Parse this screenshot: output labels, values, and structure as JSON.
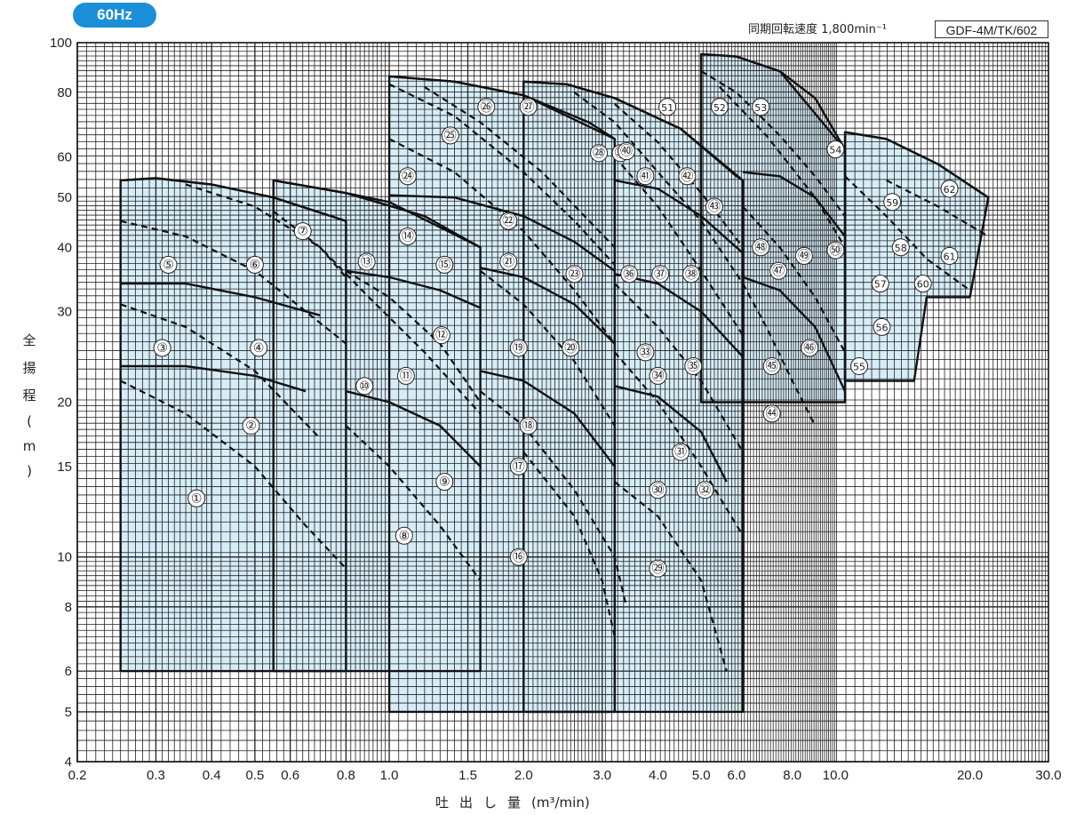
{
  "badge": "60Hz",
  "speed_label": "同期回転速度 1,800min⁻¹",
  "model_label": "GDF-4M/TK/602",
  "chart_data": {
    "type": "line",
    "title": "",
    "xlabel": "吐出し量",
    "xunit": "(m³/min)",
    "ylabel": "全揚程(m)",
    "yaxis_chars": [
      "全",
      "揚",
      "程",
      "(",
      "m",
      ")"
    ],
    "xscale": "log",
    "yscale": "log",
    "xlim": [
      0.2,
      30.0
    ],
    "ylim": [
      4,
      100
    ],
    "x_ticks": [
      0.2,
      0.3,
      0.4,
      0.5,
      0.6,
      0.8,
      1.0,
      1.5,
      2.0,
      3.0,
      4.0,
      5.0,
      6.0,
      8.0,
      10.0,
      20.0,
      30.0
    ],
    "x_tick_labels": [
      "0.2",
      "0.3",
      "0.4",
      "0.5",
      "0.6",
      "0.8",
      "1.0",
      "1.5",
      "2.0",
      "3.0",
      "4.0",
      "5.0",
      "6.0",
      "8.0",
      "10.0",
      "20.0",
      "30.0"
    ],
    "y_ticks": [
      4,
      5,
      6,
      8,
      10,
      15,
      20,
      30,
      40,
      50,
      60,
      80,
      100
    ],
    "y_tick_labels": [
      "4",
      "5",
      "6",
      "8",
      "10",
      "15",
      "20",
      "30",
      "40",
      "50",
      "60",
      "80",
      "100"
    ],
    "grid": true,
    "fill_color": "#d6edf8",
    "regions": [
      [
        [
          0.25,
          6
        ],
        [
          0.25,
          54
        ],
        [
          0.3,
          54.5
        ],
        [
          0.4,
          53
        ],
        [
          0.55,
          50
        ],
        [
          0.8,
          45
        ],
        [
          0.8,
          6
        ]
      ],
      [
        [
          0.55,
          6
        ],
        [
          0.55,
          54
        ],
        [
          0.8,
          51
        ],
        [
          1.0,
          49
        ],
        [
          1.6,
          40
        ],
        [
          1.6,
          6
        ]
      ],
      [
        [
          1.0,
          5
        ],
        [
          1.0,
          86
        ],
        [
          1.4,
          84
        ],
        [
          2.0,
          79
        ],
        [
          3.2,
          65
        ],
        [
          3.2,
          5
        ]
      ],
      [
        [
          2.0,
          5
        ],
        [
          2.0,
          84
        ],
        [
          2.5,
          83
        ],
        [
          3.2,
          78
        ],
        [
          4.5,
          68
        ],
        [
          6.0,
          55
        ],
        [
          6.2,
          54
        ],
        [
          6.2,
          5
        ]
      ],
      [
        [
          5.0,
          20
        ],
        [
          5.0,
          95
        ],
        [
          6.0,
          94
        ],
        [
          7.5,
          88
        ],
        [
          10.5,
          62
        ],
        [
          10.5,
          20
        ]
      ],
      [
        [
          10.5,
          22
        ],
        [
          10.5,
          67
        ],
        [
          13,
          65
        ],
        [
          17,
          58
        ],
        [
          22,
          50
        ],
        [
          20,
          32
        ],
        [
          16,
          32
        ],
        [
          15,
          22
        ]
      ]
    ],
    "solid_curves": [
      [
        [
          0.25,
          54
        ],
        [
          0.3,
          54.5
        ],
        [
          0.4,
          53
        ],
        [
          0.55,
          50
        ],
        [
          0.8,
          45
        ]
      ],
      [
        [
          0.25,
          34
        ],
        [
          0.35,
          34
        ],
        [
          0.5,
          32
        ],
        [
          0.7,
          29.5
        ]
      ],
      [
        [
          0.25,
          23.5
        ],
        [
          0.35,
          23.5
        ],
        [
          0.5,
          22.5
        ],
        [
          0.65,
          21
        ]
      ],
      [
        [
          0.55,
          54
        ],
        [
          0.8,
          51
        ],
        [
          1.2,
          46
        ],
        [
          1.6,
          40
        ]
      ],
      [
        [
          0.8,
          36
        ],
        [
          1.0,
          35
        ],
        [
          1.3,
          33
        ],
        [
          1.6,
          30.5
        ]
      ],
      [
        [
          0.8,
          21
        ],
        [
          1.0,
          20
        ],
        [
          1.3,
          18
        ],
        [
          1.6,
          15
        ]
      ],
      [
        [
          1.0,
          86
        ],
        [
          1.4,
          84
        ],
        [
          2.0,
          79
        ],
        [
          2.8,
          70
        ],
        [
          3.2,
          65
        ]
      ],
      [
        [
          1.0,
          50.5
        ],
        [
          1.4,
          50
        ],
        [
          2.0,
          46
        ],
        [
          2.6,
          41
        ],
        [
          3.2,
          36
        ]
      ],
      [
        [
          1.6,
          36.5
        ],
        [
          2.0,
          35
        ],
        [
          2.6,
          31
        ],
        [
          3.2,
          26
        ]
      ],
      [
        [
          1.6,
          23
        ],
        [
          2.0,
          22
        ],
        [
          2.6,
          19
        ],
        [
          3.2,
          15
        ]
      ],
      [
        [
          2.0,
          84
        ],
        [
          2.5,
          83
        ],
        [
          3.2,
          78
        ],
        [
          4.5,
          68
        ],
        [
          6.2,
          54
        ]
      ],
      [
        [
          3.2,
          54
        ],
        [
          4.0,
          52
        ],
        [
          5.0,
          46
        ],
        [
          6.2,
          39
        ]
      ],
      [
        [
          3.2,
          35.5
        ],
        [
          4.0,
          34
        ],
        [
          5.0,
          30
        ],
        [
          6.2,
          24.5
        ]
      ],
      [
        [
          3.2,
          21.5
        ],
        [
          4.0,
          20.5
        ],
        [
          5.0,
          17.5
        ],
        [
          5.7,
          14
        ]
      ],
      [
        [
          5.0,
          95
        ],
        [
          6.0,
          94
        ],
        [
          7.5,
          88
        ],
        [
          9.0,
          78
        ],
        [
          10.5,
          62
        ]
      ],
      [
        [
          6.2,
          56
        ],
        [
          7.5,
          55
        ],
        [
          9.0,
          50
        ],
        [
          10.5,
          42
        ]
      ],
      [
        [
          6.2,
          35
        ],
        [
          7.5,
          33
        ],
        [
          9.0,
          28
        ],
        [
          10.5,
          21
        ]
      ],
      [
        [
          10.5,
          67
        ],
        [
          13,
          65
        ],
        [
          17,
          58
        ],
        [
          22,
          50
        ]
      ]
    ],
    "dashed_curves": [
      [
        [
          0.25,
          45
        ],
        [
          0.35,
          42
        ],
        [
          0.5,
          36
        ],
        [
          0.8,
          26
        ]
      ],
      [
        [
          0.25,
          31
        ],
        [
          0.35,
          28
        ],
        [
          0.5,
          23
        ],
        [
          0.7,
          17
        ]
      ],
      [
        [
          0.25,
          22
        ],
        [
          0.35,
          19
        ],
        [
          0.5,
          15
        ],
        [
          0.65,
          11.5
        ],
        [
          0.8,
          9.5
        ]
      ],
      [
        [
          0.35,
          53
        ],
        [
          0.5,
          48
        ],
        [
          0.7,
          40
        ],
        [
          0.8,
          35
        ]
      ],
      [
        [
          0.55,
          47
        ],
        [
          0.7,
          40
        ],
        [
          0.9,
          32
        ],
        [
          1.2,
          25
        ],
        [
          1.6,
          19
        ]
      ],
      [
        [
          0.8,
          36
        ],
        [
          1.0,
          32
        ],
        [
          1.3,
          26
        ],
        [
          1.6,
          20
        ]
      ],
      [
        [
          0.8,
          18
        ],
        [
          1.0,
          15
        ],
        [
          1.3,
          11.5
        ],
        [
          1.6,
          9
        ]
      ],
      [
        [
          1.0,
          83
        ],
        [
          1.4,
          72
        ],
        [
          2.0,
          56
        ],
        [
          2.6,
          45
        ],
        [
          3.2,
          37
        ]
      ],
      [
        [
          1.0,
          65
        ],
        [
          1.4,
          56
        ],
        [
          2.0,
          43
        ],
        [
          2.6,
          33
        ],
        [
          3.2,
          26
        ]
      ],
      [
        [
          1.2,
          82
        ],
        [
          1.6,
          70
        ],
        [
          2.2,
          56
        ],
        [
          3.2,
          40
        ]
      ],
      [
        [
          1.6,
          36
        ],
        [
          2.0,
          31
        ],
        [
          2.6,
          24
        ],
        [
          3.2,
          18
        ]
      ],
      [
        [
          1.6,
          21
        ],
        [
          2.0,
          18
        ],
        [
          2.6,
          13.5
        ],
        [
          3.2,
          10
        ],
        [
          3.4,
          8
        ]
      ],
      [
        [
          2.0,
          16
        ],
        [
          2.6,
          12
        ],
        [
          3.0,
          9
        ],
        [
          3.2,
          7
        ]
      ],
      [
        [
          2.6,
          80
        ],
        [
          3.2,
          70
        ],
        [
          4.0,
          56
        ],
        [
          5.0,
          45
        ],
        [
          6.2,
          34
        ]
      ],
      [
        [
          3.2,
          76
        ],
        [
          4.0,
          64
        ],
        [
          5.0,
          51
        ],
        [
          6.2,
          40
        ]
      ],
      [
        [
          3.2,
          60
        ],
        [
          4.0,
          48
        ],
        [
          5.0,
          36
        ],
        [
          6.2,
          27
        ]
      ],
      [
        [
          3.2,
          34
        ],
        [
          4.0,
          28
        ],
        [
          5.0,
          22
        ],
        [
          6.2,
          16
        ]
      ],
      [
        [
          3.2,
          25
        ],
        [
          4.0,
          20
        ],
        [
          5.0,
          15
        ],
        [
          6.2,
          11
        ]
      ],
      [
        [
          3.2,
          14
        ],
        [
          4.0,
          12
        ],
        [
          5.0,
          9
        ],
        [
          5.7,
          6
        ]
      ],
      [
        [
          5.0,
          88
        ],
        [
          6.0,
          80
        ],
        [
          7.5,
          66
        ],
        [
          9.0,
          55
        ],
        [
          10.5,
          46
        ]
      ],
      [
        [
          5.5,
          82
        ],
        [
          7.0,
          66
        ],
        [
          9.0,
          50
        ],
        [
          10.5,
          40
        ]
      ],
      [
        [
          6.2,
          48
        ],
        [
          7.5,
          40
        ],
        [
          9.0,
          32
        ],
        [
          10.5,
          25
        ]
      ],
      [
        [
          6.2,
          34
        ],
        [
          7.0,
          28
        ],
        [
          8.0,
          22
        ],
        [
          9.0,
          18
        ]
      ],
      [
        [
          10.5,
          55
        ],
        [
          13,
          46
        ],
        [
          16,
          38
        ],
        [
          20,
          33
        ]
      ],
      [
        [
          13,
          54
        ],
        [
          17,
          48
        ],
        [
          22,
          42
        ]
      ]
    ],
    "point_labels": [
      {
        "n": "①",
        "x": 0.37,
        "y": 13
      },
      {
        "n": "②",
        "x": 0.49,
        "y": 18
      },
      {
        "n": "③",
        "x": 0.31,
        "y": 25.5
      },
      {
        "n": "④",
        "x": 0.51,
        "y": 25.5
      },
      {
        "n": "⑤",
        "x": 0.32,
        "y": 37
      },
      {
        "n": "⑥",
        "x": 0.5,
        "y": 37
      },
      {
        "n": "⑦",
        "x": 0.64,
        "y": 43
      },
      {
        "n": "⑧",
        "x": 1.08,
        "y": 11
      },
      {
        "n": "⑨",
        "x": 1.33,
        "y": 14
      },
      {
        "n": "⑩",
        "x": 0.88,
        "y": 21.5
      },
      {
        "n": "⑪",
        "x": 1.09,
        "y": 22.5
      },
      {
        "n": "⑫",
        "x": 1.31,
        "y": 27
      },
      {
        "n": "⑬",
        "x": 0.89,
        "y": 37.5
      },
      {
        "n": "⑭",
        "x": 1.1,
        "y": 42
      },
      {
        "n": "⑮",
        "x": 1.33,
        "y": 37
      },
      {
        "n": "⑯",
        "x": 1.95,
        "y": 10
      },
      {
        "n": "⑰",
        "x": 1.95,
        "y": 15
      },
      {
        "n": "⑱",
        "x": 2.05,
        "y": 18
      },
      {
        "n": "⑲",
        "x": 1.95,
        "y": 25.5
      },
      {
        "n": "⑳",
        "x": 2.55,
        "y": 25.5
      },
      {
        "n": "㉑",
        "x": 1.85,
        "y": 37.5
      },
      {
        "n": "㉒",
        "x": 1.85,
        "y": 45
      },
      {
        "n": "㉓",
        "x": 2.6,
        "y": 35.5
      },
      {
        "n": "㉔",
        "x": 1.1,
        "y": 55
      },
      {
        "n": "㉕",
        "x": 1.37,
        "y": 66
      },
      {
        "n": "㉖",
        "x": 1.65,
        "y": 75
      },
      {
        "n": "㉗",
        "x": 2.05,
        "y": 75
      },
      {
        "n": "㉘",
        "x": 2.95,
        "y": 61
      },
      {
        "n": "㉙",
        "x": 4.0,
        "y": 9.5
      },
      {
        "n": "㉚",
        "x": 4.0,
        "y": 13.5
      },
      {
        "n": "㉛",
        "x": 4.5,
        "y": 16
      },
      {
        "n": "㉜",
        "x": 5.1,
        "y": 13.5
      },
      {
        "n": "㉝",
        "x": 3.75,
        "y": 25
      },
      {
        "n": "㉞",
        "x": 4.0,
        "y": 22.5
      },
      {
        "n": "㉟",
        "x": 4.8,
        "y": 23.5
      },
      {
        "n": "㊱",
        "x": 3.45,
        "y": 35.5
      },
      {
        "n": "㊲",
        "x": 4.05,
        "y": 35.5
      },
      {
        "n": "㊳",
        "x": 4.75,
        "y": 35.5
      },
      {
        "n": "㊴",
        "x": 3.3,
        "y": 61
      },
      {
        "n": "㊵",
        "x": 3.4,
        "y": 61.5
      },
      {
        "n": "㊶",
        "x": 3.75,
        "y": 55
      },
      {
        "n": "㊷",
        "x": 4.65,
        "y": 55
      },
      {
        "n": "㊸",
        "x": 5.35,
        "y": 48
      },
      {
        "n": "㊹",
        "x": 7.2,
        "y": 19
      },
      {
        "n": "㊺",
        "x": 7.2,
        "y": 23.5
      },
      {
        "n": "㊻",
        "x": 8.75,
        "y": 25.5
      },
      {
        "n": "㊼",
        "x": 7.45,
        "y": 36
      },
      {
        "n": "㊽",
        "x": 6.8,
        "y": 40
      },
      {
        "n": "㊾",
        "x": 8.5,
        "y": 38.5
      },
      {
        "n": "㊿",
        "x": 10.0,
        "y": 39.5
      },
      {
        "n": "51",
        "x": 4.2,
        "y": 75
      },
      {
        "n": "52",
        "x": 5.5,
        "y": 75
      },
      {
        "n": "53",
        "x": 6.8,
        "y": 75
      },
      {
        "n": "54",
        "x": 10.0,
        "y": 62
      },
      {
        "n": "55",
        "x": 11.3,
        "y": 23.5
      },
      {
        "n": "56",
        "x": 12.7,
        "y": 28
      },
      {
        "n": "57",
        "x": 12.6,
        "y": 34
      },
      {
        "n": "58",
        "x": 14.0,
        "y": 40
      },
      {
        "n": "59",
        "x": 13.4,
        "y": 49
      },
      {
        "n": "60",
        "x": 15.7,
        "y": 34
      },
      {
        "n": "61",
        "x": 18.0,
        "y": 38.5
      },
      {
        "n": "62",
        "x": 18.0,
        "y": 52
      }
    ]
  }
}
